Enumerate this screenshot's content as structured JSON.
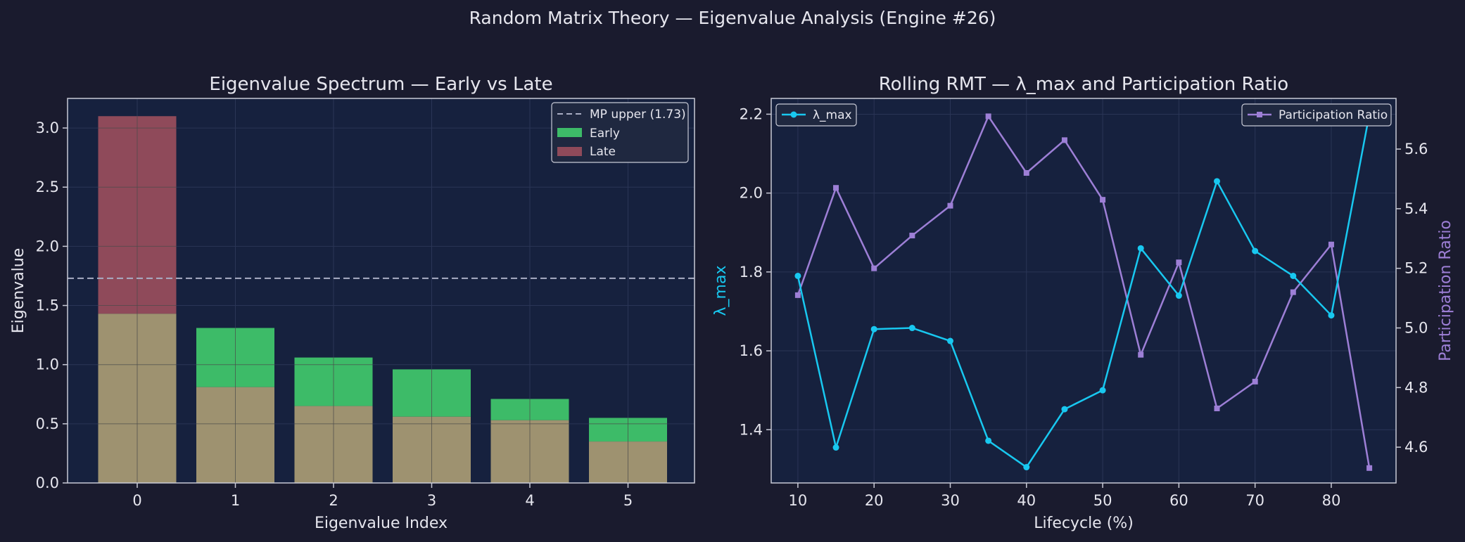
{
  "figure": {
    "title": "Random Matrix Theory — Eigenvalue Analysis (Engine #26)",
    "colors": {
      "page_bg": "#1a1b2e",
      "axes_bg": "#16213e",
      "spine": "#c8cad6",
      "text": "#e6e6ee",
      "grid": "#2a3556"
    }
  },
  "chart_data": [
    {
      "type": "bar",
      "title": "Eigenvalue Spectrum — Early vs Late",
      "xlabel": "Eigenvalue Index",
      "ylabel": "Eigenvalue",
      "categories": [
        "0",
        "1",
        "2",
        "3",
        "4",
        "5"
      ],
      "ylim": [
        0,
        3.25
      ],
      "yticks": [
        "0.0",
        "0.5",
        "1.0",
        "1.5",
        "2.0",
        "2.5",
        "3.0"
      ],
      "grid": true,
      "legend_position": "top-right",
      "series": [
        {
          "name": "Early",
          "color": "#3dbb68",
          "values": [
            1.43,
            1.31,
            1.06,
            0.96,
            0.71,
            0.55
          ]
        },
        {
          "name": "Late",
          "color": "#8f4a5a",
          "values": [
            3.1,
            0.81,
            0.65,
            0.56,
            0.53,
            0.35
          ]
        }
      ],
      "overlap_color": "#9e9270",
      "reference_line": {
        "name": "MP upper (1.73)",
        "value": 1.73,
        "color": "#a9adc4",
        "style": "dashed"
      }
    },
    {
      "type": "line",
      "title": "Rolling RMT — λ_max and Participation Ratio",
      "xlabel": "Lifecycle (%)",
      "x": [
        10,
        15,
        20,
        25,
        30,
        35,
        40,
        45,
        50,
        55,
        60,
        65,
        70,
        75,
        80,
        85
      ],
      "xlim": [
        6.5,
        88.5
      ],
      "xticks": [
        "10",
        "20",
        "30",
        "40",
        "50",
        "60",
        "70",
        "80"
      ],
      "grid": true,
      "series": [
        {
          "name": "λ_max",
          "axis": "left",
          "color": "#18c8f0",
          "marker": "circle",
          "ylabel": "λ_max",
          "ylim": [
            1.265,
            2.24
          ],
          "yticks": [
            "1.4",
            "1.6",
            "1.8",
            "2.0",
            "2.2"
          ],
          "legend_position": "top-left",
          "values": [
            1.79,
            1.355,
            1.655,
            1.658,
            1.625,
            1.372,
            1.305,
            1.452,
            1.5,
            1.86,
            1.74,
            2.03,
            1.853,
            1.79,
            1.69,
            2.2
          ]
        },
        {
          "name": "Participation Ratio",
          "axis": "right",
          "color": "#9d7fd6",
          "marker": "square",
          "ylabel": "Participation Ratio",
          "ylim": [
            4.48,
            5.77
          ],
          "yticks": [
            "4.6",
            "4.8",
            "5.0",
            "5.2",
            "5.4",
            "5.6"
          ],
          "legend_position": "top-right",
          "values": [
            5.11,
            5.47,
            5.2,
            5.31,
            5.41,
            5.71,
            5.52,
            5.63,
            5.43,
            4.91,
            5.22,
            4.73,
            4.82,
            5.12,
            5.28,
            4.53
          ]
        }
      ]
    }
  ]
}
